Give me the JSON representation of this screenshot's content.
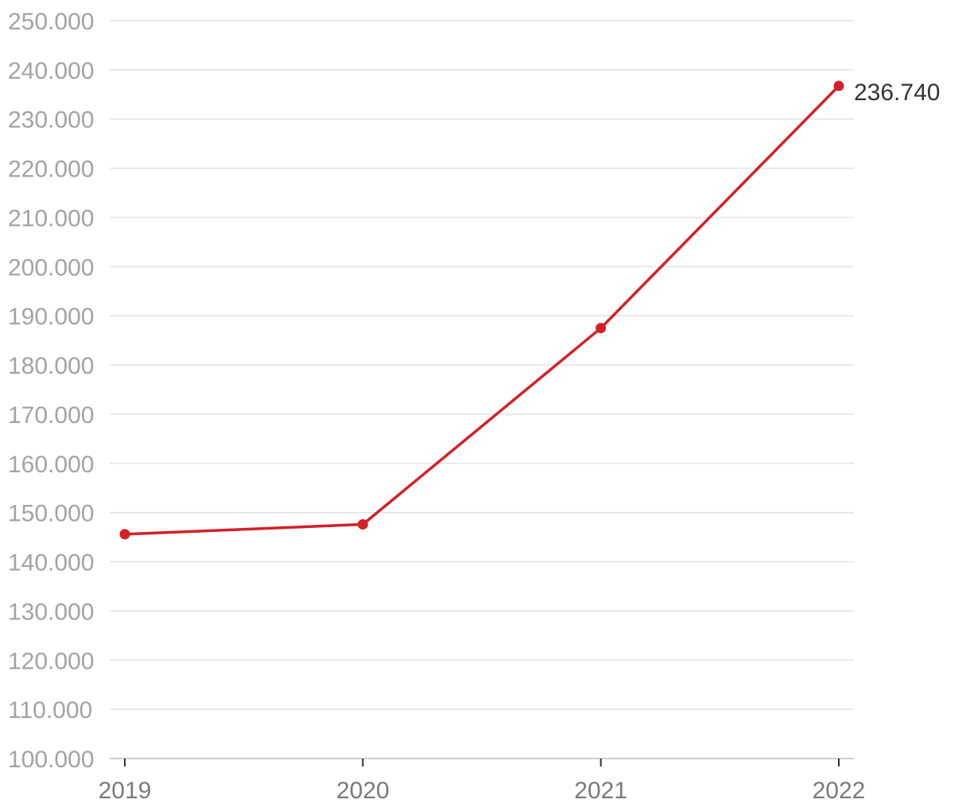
{
  "chart_data": {
    "type": "line",
    "title": "",
    "xlabel": "",
    "ylabel": "",
    "categories": [
      "2019",
      "2020",
      "2021",
      "2022"
    ],
    "series": [
      {
        "values": [
          145.6,
          147.6,
          187.5,
          236.74
        ],
        "color": "#d42027"
      }
    ],
    "ylim": [
      100,
      250
    ],
    "yticks": [
      100,
      110,
      120,
      130,
      140,
      150,
      160,
      170,
      180,
      190,
      200,
      210,
      220,
      230,
      240,
      250
    ],
    "ytick_labels": [
      "100.000",
      "110.000",
      "120.000",
      "130.000",
      "140.000",
      "150.000",
      "160.000",
      "170.000",
      "180.000",
      "190.000",
      "200.000",
      "210.000",
      "220.000",
      "230.000",
      "240.000",
      "250.000"
    ],
    "data_labels": [
      {
        "index": 3,
        "text": "236.740"
      }
    ],
    "grid": true,
    "legend": "none"
  }
}
